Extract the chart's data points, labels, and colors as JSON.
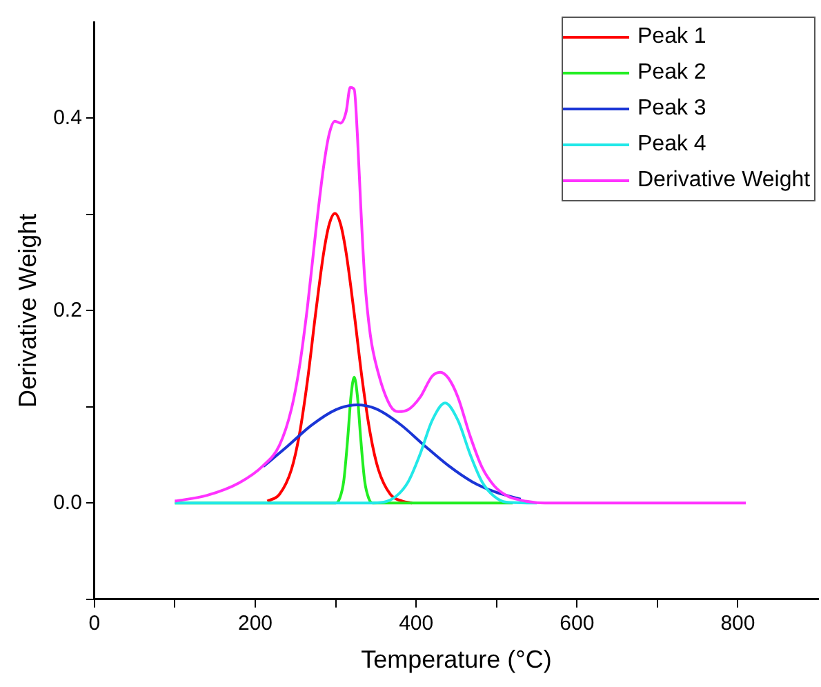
{
  "chart_data": {
    "type": "line",
    "xlabel": "Temperature (°C)",
    "ylabel": "Derivative Weight",
    "xlim": [
      0,
      900
    ],
    "ylim": [
      -0.1,
      0.5
    ],
    "xticks": [
      0,
      {
        "value": 100,
        "label": null
      },
      200,
      {
        "value": 300,
        "label": null
      },
      400,
      {
        "value": 500,
        "label": null
      },
      600,
      {
        "value": 700,
        "label": null
      },
      800
    ],
    "yticks": [
      {
        "value": -0.1,
        "label": null
      },
      {
        "value": 0,
        "label": "0.0"
      },
      {
        "value": 0.1,
        "label": null
      },
      {
        "value": 0.2,
        "label": "0.2"
      },
      {
        "value": 0.3,
        "label": null
      },
      {
        "value": 0.4,
        "label": "0.4"
      }
    ],
    "grid": false,
    "legend": "top right",
    "marker": "none",
    "line_style": "solid",
    "series": [
      {
        "name": "Peak 1",
        "color": "#ff0000",
        "x": [
          215,
          230,
          245,
          255,
          265,
          275,
          285,
          292,
          299,
          306,
          313,
          323,
          333,
          343,
          353,
          368,
          383,
          395
        ],
        "values": [
          0.002,
          0.009,
          0.035,
          0.072,
          0.128,
          0.197,
          0.26,
          0.29,
          0.301,
          0.29,
          0.26,
          0.197,
          0.128,
          0.072,
          0.035,
          0.009,
          0.002,
          0
        ]
      },
      {
        "name": "Peak 2",
        "color": "#22ee22",
        "x": [
          100,
          300,
          305,
          310,
          315,
          319,
          323,
          327,
          331,
          336,
          341,
          346,
          520
        ],
        "values": [
          0,
          0,
          0.005,
          0.023,
          0.068,
          0.111,
          0.131,
          0.111,
          0.068,
          0.023,
          0.005,
          0,
          0
        ]
      },
      {
        "name": "Peak 3",
        "color": "#1a35d6",
        "x": [
          210,
          240,
          270,
          300,
          326,
          350,
          380,
          410,
          440,
          470,
          500,
          530
        ],
        "values": [
          0.038,
          0.059,
          0.081,
          0.097,
          0.102,
          0.098,
          0.082,
          0.06,
          0.039,
          0.022,
          0.011,
          0.004
        ]
      },
      {
        "name": "Peak 4",
        "color": "#22e8e8",
        "x": [
          100,
          340,
          360,
          375,
          390,
          405,
          420,
          436,
          452,
          467,
          482,
          497,
          512,
          550
        ],
        "values": [
          0,
          0,
          0.001,
          0.007,
          0.022,
          0.051,
          0.086,
          0.104,
          0.086,
          0.051,
          0.022,
          0.007,
          0.001,
          0
        ]
      },
      {
        "name": "Derivative Weight",
        "color": "#ff33ff",
        "x": [
          100,
          140,
          180,
          210,
          230,
          245,
          255,
          265,
          275,
          285,
          292,
          299,
          306,
          313,
          318,
          323,
          327,
          331,
          336,
          343,
          353,
          368,
          378,
          390,
          405,
          420,
          430,
          440,
          452,
          467,
          482,
          497,
          512,
          530,
          560,
          810
        ],
        "values": [
          0.002,
          0.008,
          0.021,
          0.039,
          0.06,
          0.098,
          0.142,
          0.205,
          0.281,
          0.35,
          0.384,
          0.397,
          0.395,
          0.407,
          0.432,
          0.43,
          0.382,
          0.311,
          0.234,
          0.175,
          0.135,
          0.101,
          0.095,
          0.097,
          0.11,
          0.132,
          0.136,
          0.13,
          0.11,
          0.07,
          0.037,
          0.018,
          0.008,
          0.003,
          0,
          0
        ]
      }
    ]
  }
}
